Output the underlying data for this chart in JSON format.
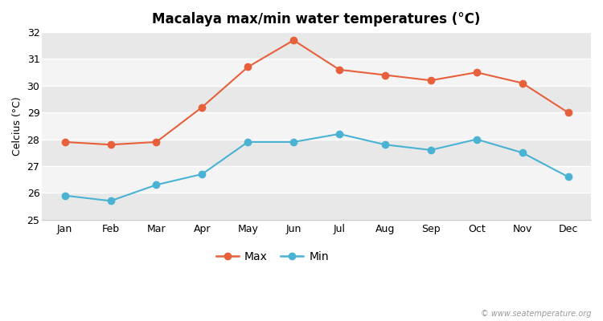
{
  "title": "Macalaya max/min water temperatures (°C)",
  "ylabel": "Celcius (°C)",
  "months": [
    "Jan",
    "Feb",
    "Mar",
    "Apr",
    "May",
    "Jun",
    "Jul",
    "Aug",
    "Sep",
    "Oct",
    "Nov",
    "Dec"
  ],
  "max_values": [
    27.9,
    27.8,
    27.9,
    29.2,
    30.7,
    31.7,
    30.6,
    30.4,
    30.2,
    30.5,
    30.1,
    29.0
  ],
  "min_values": [
    25.9,
    25.7,
    26.3,
    26.7,
    27.9,
    27.9,
    28.2,
    27.8,
    27.6,
    28.0,
    27.5,
    26.6
  ],
  "max_color": "#e8603b",
  "min_color": "#4ab2d3",
  "bg_color": "#ffffff",
  "stripe_light": "#f4f4f4",
  "stripe_dark": "#e8e8e8",
  "ylim": [
    25,
    32
  ],
  "yticks": [
    25,
    26,
    27,
    28,
    29,
    30,
    31,
    32
  ],
  "watermark": "© www.seatemperature.org",
  "legend_max": "Max",
  "legend_min": "Min",
  "title_fontsize": 12,
  "axis_fontsize": 9,
  "tick_fontsize": 9
}
